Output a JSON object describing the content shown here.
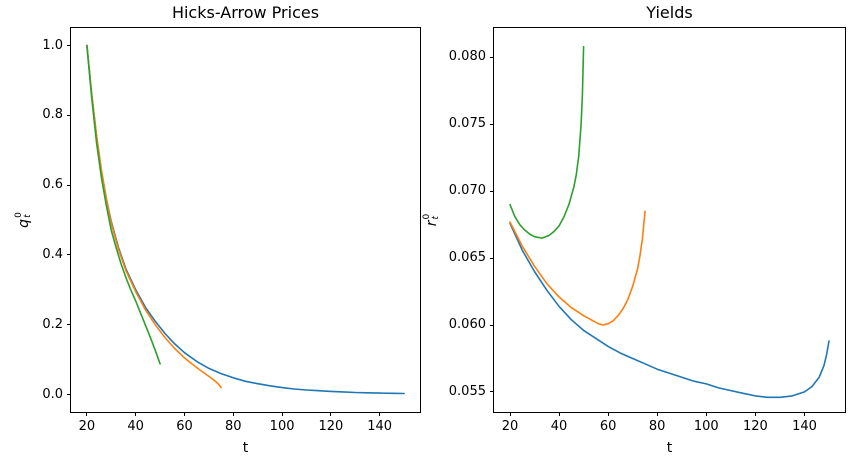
{
  "figure": {
    "background": "#ffffff",
    "text_color": "#000000",
    "spine_color": "#000000",
    "palette": {
      "blue": "#1f77b4",
      "orange": "#ff7f0e",
      "green": "#2ca02c"
    }
  },
  "chart_data": [
    {
      "id": "hicks-arrow-prices",
      "type": "line",
      "title": "Hicks-Arrow Prices",
      "xlabel": "t",
      "ylabel": {
        "base": "q",
        "sup": "0",
        "sub": "t"
      },
      "xlim": [
        13.5,
        156.5
      ],
      "ylim": [
        -0.05,
        1.05
      ],
      "grid": false,
      "legend": null,
      "xticks": [
        {
          "v": 20,
          "label": "20"
        },
        {
          "v": 40,
          "label": "40"
        },
        {
          "v": 60,
          "label": "60"
        },
        {
          "v": 80,
          "label": "80"
        },
        {
          "v": 100,
          "label": "100"
        },
        {
          "v": 120,
          "label": "120"
        },
        {
          "v": 140,
          "label": "140"
        }
      ],
      "yticks": [
        {
          "v": 0.0,
          "label": "0.0"
        },
        {
          "v": 0.2,
          "label": "0.2"
        },
        {
          "v": 0.4,
          "label": "0.4"
        },
        {
          "v": 0.6,
          "label": "0.6"
        },
        {
          "v": 0.8,
          "label": "0.8"
        },
        {
          "v": 1.0,
          "label": "1.0"
        }
      ],
      "series": [
        {
          "color": "#1f77b4",
          "points": [
            [
              20,
              1.0
            ],
            [
              22,
              0.86
            ],
            [
              24,
              0.74
            ],
            [
              26,
              0.64
            ],
            [
              28,
              0.56
            ],
            [
              30,
              0.495
            ],
            [
              33,
              0.42
            ],
            [
              36,
              0.36
            ],
            [
              40,
              0.3
            ],
            [
              44,
              0.25
            ],
            [
              48,
              0.21
            ],
            [
              52,
              0.175
            ],
            [
              56,
              0.145
            ],
            [
              60,
              0.12
            ],
            [
              65,
              0.095
            ],
            [
              70,
              0.075
            ],
            [
              75,
              0.06
            ],
            [
              80,
              0.048
            ],
            [
              85,
              0.038
            ],
            [
              90,
              0.031
            ],
            [
              95,
              0.025
            ],
            [
              100,
              0.02
            ],
            [
              105,
              0.016
            ],
            [
              110,
              0.013
            ],
            [
              115,
              0.011
            ],
            [
              120,
              0.009
            ],
            [
              125,
              0.0075
            ],
            [
              130,
              0.006
            ],
            [
              135,
              0.005
            ],
            [
              140,
              0.004
            ],
            [
              145,
              0.0035
            ],
            [
              150,
              0.003
            ]
          ]
        },
        {
          "color": "#ff7f0e",
          "points": [
            [
              20,
              1.0
            ],
            [
              22,
              0.86
            ],
            [
              24,
              0.74
            ],
            [
              26,
              0.64
            ],
            [
              28,
              0.56
            ],
            [
              30,
              0.49
            ],
            [
              33,
              0.415
            ],
            [
              36,
              0.355
            ],
            [
              40,
              0.295
            ],
            [
              44,
              0.243
            ],
            [
              48,
              0.2
            ],
            [
              52,
              0.163
            ],
            [
              56,
              0.132
            ],
            [
              60,
              0.105
            ],
            [
              63,
              0.088
            ],
            [
              66,
              0.072
            ],
            [
              69,
              0.057
            ],
            [
              71,
              0.047
            ],
            [
              73,
              0.036
            ],
            [
              74,
              0.029
            ],
            [
              75,
              0.02
            ]
          ]
        },
        {
          "color": "#2ca02c",
          "points": [
            [
              20,
              1.0
            ],
            [
              22,
              0.85
            ],
            [
              24,
              0.72
            ],
            [
              26,
              0.62
            ],
            [
              28,
              0.54
            ],
            [
              30,
              0.47
            ],
            [
              32,
              0.42
            ],
            [
              34,
              0.375
            ],
            [
              36,
              0.335
            ],
            [
              38,
              0.3
            ],
            [
              40,
              0.268
            ],
            [
              42,
              0.233
            ],
            [
              44,
              0.199
            ],
            [
              46,
              0.164
            ],
            [
              48,
              0.127
            ],
            [
              50,
              0.088
            ]
          ]
        }
      ]
    },
    {
      "id": "yields",
      "type": "line",
      "title": "Yields",
      "xlabel": "t",
      "ylabel": {
        "base": "r",
        "sup": "0",
        "sub": "t"
      },
      "xlim": [
        13.5,
        156.5
      ],
      "ylim": [
        0.0535,
        0.0822
      ],
      "grid": false,
      "legend": null,
      "xticks": [
        {
          "v": 20,
          "label": "20"
        },
        {
          "v": 40,
          "label": "40"
        },
        {
          "v": 60,
          "label": "60"
        },
        {
          "v": 80,
          "label": "80"
        },
        {
          "v": 100,
          "label": "100"
        },
        {
          "v": 120,
          "label": "120"
        },
        {
          "v": 140,
          "label": "140"
        }
      ],
      "yticks": [
        {
          "v": 0.055,
          "label": "0.055"
        },
        {
          "v": 0.06,
          "label": "0.060"
        },
        {
          "v": 0.065,
          "label": "0.065"
        },
        {
          "v": 0.07,
          "label": "0.070"
        },
        {
          "v": 0.075,
          "label": "0.075"
        },
        {
          "v": 0.08,
          "label": "0.080"
        }
      ],
      "series": [
        {
          "color": "#1f77b4",
          "points": [
            [
              20,
              0.0676
            ],
            [
              25,
              0.0656
            ],
            [
              30,
              0.064
            ],
            [
              35,
              0.0626
            ],
            [
              40,
              0.0614
            ],
            [
              45,
              0.0604
            ],
            [
              50,
              0.0596
            ],
            [
              55,
              0.059
            ],
            [
              60,
              0.0584
            ],
            [
              65,
              0.0579
            ],
            [
              70,
              0.0575
            ],
            [
              75,
              0.0571
            ],
            [
              80,
              0.0567
            ],
            [
              85,
              0.0564
            ],
            [
              90,
              0.0561
            ],
            [
              95,
              0.0558
            ],
            [
              100,
              0.0556
            ],
            [
              105,
              0.0553
            ],
            [
              110,
              0.0551
            ],
            [
              115,
              0.0549
            ],
            [
              120,
              0.0547
            ],
            [
              125,
              0.0546
            ],
            [
              130,
              0.0546
            ],
            [
              135,
              0.0547
            ],
            [
              140,
              0.055
            ],
            [
              143,
              0.0554
            ],
            [
              146,
              0.0561
            ],
            [
              148,
              0.057
            ],
            [
              149,
              0.0578
            ],
            [
              150,
              0.0588
            ]
          ]
        },
        {
          "color": "#ff7f0e",
          "points": [
            [
              20,
              0.0677
            ],
            [
              25,
              0.0659
            ],
            [
              30,
              0.0644
            ],
            [
              35,
              0.0631
            ],
            [
              40,
              0.0621
            ],
            [
              45,
              0.0613
            ],
            [
              50,
              0.0607
            ],
            [
              53,
              0.0604
            ],
            [
              56,
              0.0601
            ],
            [
              58,
              0.06
            ],
            [
              60,
              0.0601
            ],
            [
              62,
              0.0603
            ],
            [
              64,
              0.0607
            ],
            [
              66,
              0.0612
            ],
            [
              68,
              0.0619
            ],
            [
              70,
              0.0629
            ],
            [
              72,
              0.0642
            ],
            [
              73,
              0.0652
            ],
            [
              74,
              0.0665
            ],
            [
              75,
              0.0685
            ]
          ]
        },
        {
          "color": "#2ca02c",
          "points": [
            [
              20,
              0.069
            ],
            [
              22,
              0.0681
            ],
            [
              24,
              0.0675
            ],
            [
              26,
              0.0671
            ],
            [
              28,
              0.0668
            ],
            [
              30,
              0.0666
            ],
            [
              33,
              0.0665
            ],
            [
              36,
              0.0667
            ],
            [
              38,
              0.067
            ],
            [
              40,
              0.0674
            ],
            [
              42,
              0.0681
            ],
            [
              44,
              0.069
            ],
            [
              46,
              0.0703
            ],
            [
              47,
              0.0712
            ],
            [
              48,
              0.0726
            ],
            [
              49,
              0.075
            ],
            [
              49.5,
              0.0772
            ],
            [
              50,
              0.0808
            ]
          ]
        }
      ]
    }
  ]
}
